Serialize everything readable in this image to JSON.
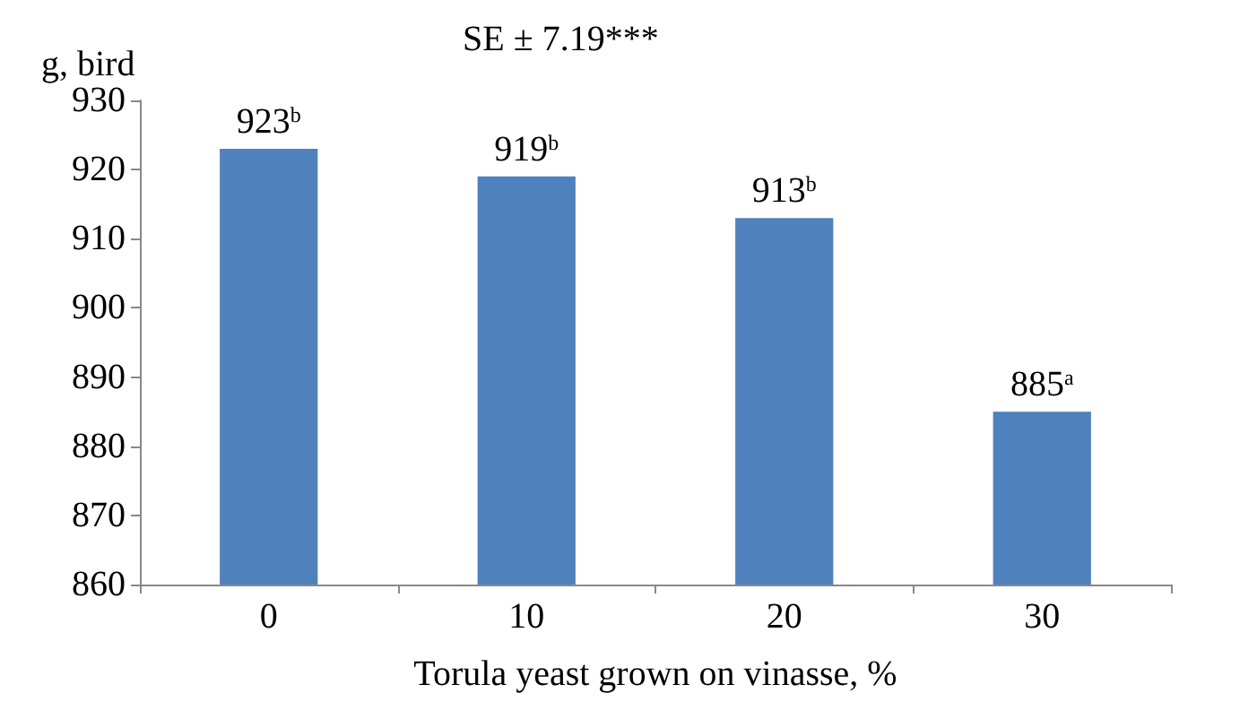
{
  "chart_data": {
    "type": "bar",
    "ylabel": "g, bird",
    "xlabel": "Torula yeast grown on vinasse, %",
    "annotations": [
      "SE ± 7.19***"
    ],
    "categories": [
      "0",
      "10",
      "20",
      "30"
    ],
    "values": [
      923,
      919,
      913,
      885
    ],
    "value_labels": [
      "923$^{b}$",
      "919$^{b}$",
      "913$^{b}$",
      "885$^{a}$"
    ],
    "color": "#4f81bd",
    "ylim": [
      860,
      930
    ],
    "yticks": [
      860,
      870,
      880,
      890,
      900,
      910,
      920,
      930
    ],
    "grid": false
  }
}
